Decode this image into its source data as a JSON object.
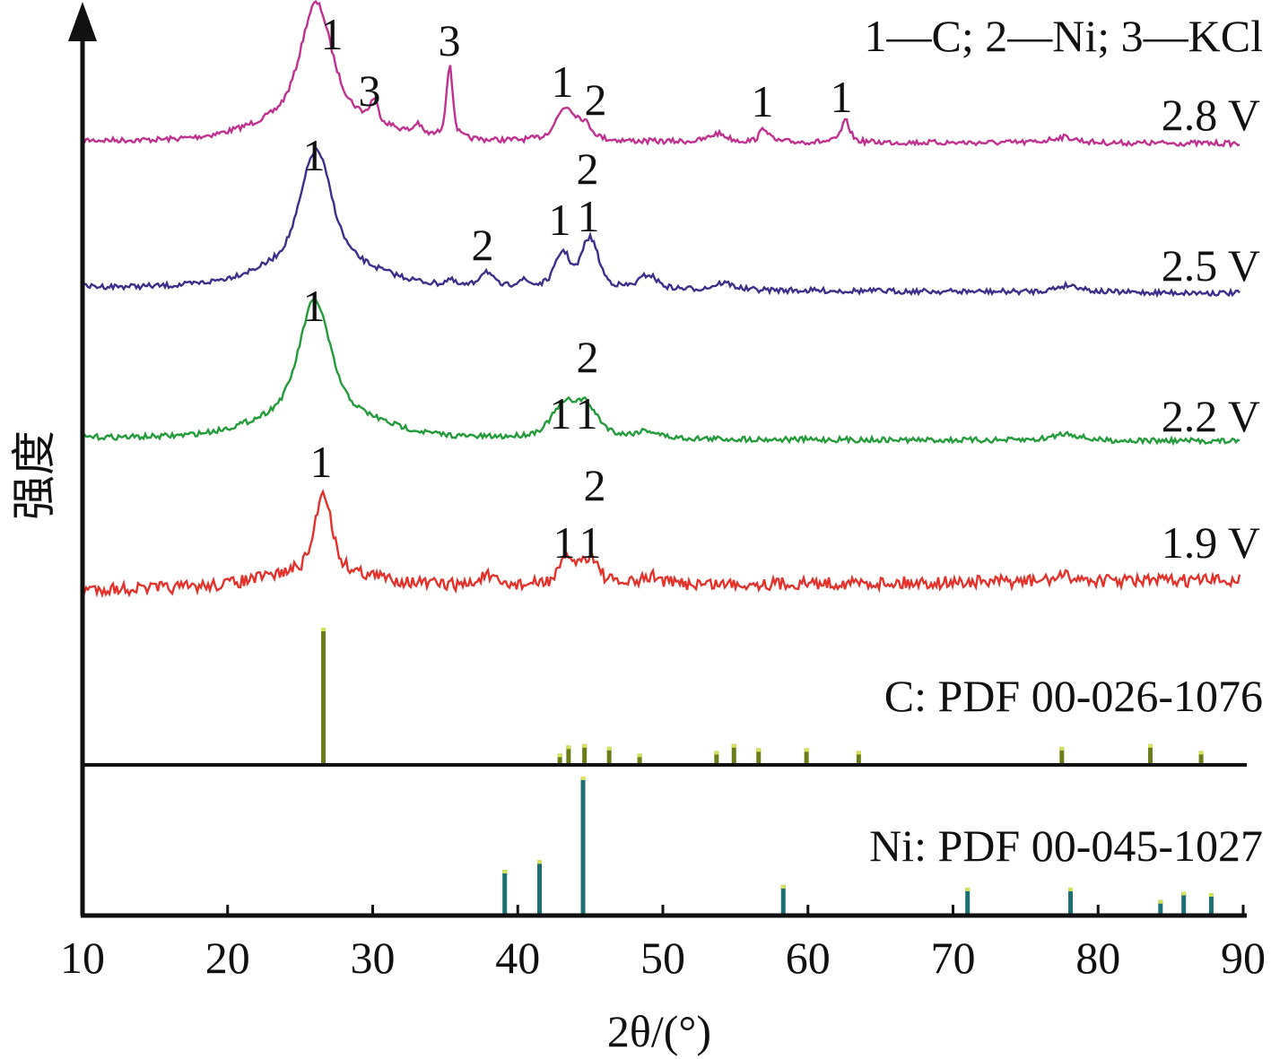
{
  "chart_data": {
    "type": "line",
    "xlabel": "2θ/(°)",
    "ylabel": "强度",
    "xlim": [
      10,
      90
    ],
    "x_ticks": [
      10,
      20,
      30,
      40,
      50,
      60,
      70,
      80,
      90
    ],
    "legend": "1—C; 2—Ni; 3—KCl",
    "series": [
      {
        "name": "2.8 V",
        "color": "#c0308f",
        "baseline": 0.155,
        "peaks": [
          {
            "x": 26.1,
            "height": 0.97,
            "width": 1.4,
            "label": "1"
          },
          {
            "x": 30.1,
            "height": 0.18,
            "width": 0.35,
            "label": "3"
          },
          {
            "x": 33.1,
            "height": 0.09,
            "width": 0.3
          },
          {
            "x": 35.3,
            "height": 0.62,
            "width": 0.3,
            "label": "3"
          },
          {
            "x": 43.3,
            "height": 0.28,
            "width": 0.9,
            "label": "1"
          },
          {
            "x": 44.6,
            "height": 0.12,
            "width": 0.7,
            "label": "2"
          },
          {
            "x": 53.8,
            "height": 0.07,
            "width": 0.8
          },
          {
            "x": 57.0,
            "height": 0.12,
            "width": 0.4,
            "label": "1"
          },
          {
            "x": 62.6,
            "height": 0.18,
            "width": 0.4,
            "label": "1"
          },
          {
            "x": 77.6,
            "height": 0.05,
            "width": 1.2
          }
        ]
      },
      {
        "name": "2.5 V",
        "color": "#3a2f8a",
        "baseline": 0.155,
        "peaks": [
          {
            "x": 26.1,
            "height": 0.97,
            "width": 1.4,
            "label": "1"
          },
          {
            "x": 35.3,
            "height": 0.05,
            "width": 0.4
          },
          {
            "x": 37.8,
            "height": 0.14,
            "width": 0.6,
            "label": "2"
          },
          {
            "x": 40.3,
            "height": 0.06,
            "width": 0.6
          },
          {
            "x": 43.1,
            "height": 0.3,
            "width": 0.7,
            "label": "1"
          },
          {
            "x": 45.1,
            "height": 0.36,
            "width": 0.7,
            "label": "1"
          },
          {
            "x": 44.6,
            "height": 0.12,
            "width": 0.5,
            "label": "2"
          },
          {
            "x": 49.0,
            "height": 0.12,
            "width": 0.8
          },
          {
            "x": 54.2,
            "height": 0.06,
            "width": 0.9
          },
          {
            "x": 78.0,
            "height": 0.06,
            "width": 1.2
          }
        ]
      },
      {
        "name": "2.2 V",
        "color": "#239b3a",
        "baseline": 0.155,
        "peaks": [
          {
            "x": 26.0,
            "height": 0.97,
            "width": 1.4,
            "label": "1"
          },
          {
            "x": 43.2,
            "height": 0.26,
            "width": 1.2,
            "label": "1"
          },
          {
            "x": 44.8,
            "height": 0.2,
            "width": 1.2,
            "label": "1"
          },
          {
            "x": 44.6,
            "height": 0.05,
            "width": 0.6,
            "label": "2"
          },
          {
            "x": 48.9,
            "height": 0.06,
            "width": 1.0
          },
          {
            "x": 77.8,
            "height": 0.06,
            "width": 1.2
          }
        ]
      },
      {
        "name": "1.9 V",
        "color": "#e2322b",
        "baseline": 0.155,
        "peaks": [
          {
            "x": 26.6,
            "height": 0.82,
            "width": 0.75,
            "label": "1"
          },
          {
            "x": 37.8,
            "height": 0.1,
            "width": 0.6
          },
          {
            "x": 43.5,
            "height": 0.26,
            "width": 0.8,
            "label": "1"
          },
          {
            "x": 45.1,
            "height": 0.24,
            "width": 0.7,
            "label": "1"
          },
          {
            "x": 44.6,
            "height": 0.05,
            "width": 0.5,
            "label": "2"
          },
          {
            "x": 49.3,
            "height": 0.08,
            "width": 0.8
          },
          {
            "x": 77.8,
            "height": 0.05,
            "width": 1.2
          }
        ]
      }
    ],
    "reference_patterns": [
      {
        "name": "C: PDF 00-026-1076",
        "color": "#6b7d1a",
        "lines": [
          {
            "x": 26.6,
            "intensity": 1.0
          },
          {
            "x": 42.9,
            "intensity": 0.07
          },
          {
            "x": 43.5,
            "intensity": 0.13
          },
          {
            "x": 44.6,
            "intensity": 0.14
          },
          {
            "x": 46.3,
            "intensity": 0.12
          },
          {
            "x": 48.4,
            "intensity": 0.07
          },
          {
            "x": 53.7,
            "intensity": 0.09
          },
          {
            "x": 54.9,
            "intensity": 0.14
          },
          {
            "x": 56.6,
            "intensity": 0.11
          },
          {
            "x": 59.9,
            "intensity": 0.11
          },
          {
            "x": 63.5,
            "intensity": 0.09
          },
          {
            "x": 77.5,
            "intensity": 0.12
          },
          {
            "x": 83.6,
            "intensity": 0.14
          },
          {
            "x": 87.1,
            "intensity": 0.09
          }
        ]
      },
      {
        "name": "Ni: PDF 00-045-1027",
        "color": "#1c6f73",
        "lines": [
          {
            "x": 39.1,
            "intensity": 0.32
          },
          {
            "x": 41.5,
            "intensity": 0.39
          },
          {
            "x": 44.5,
            "intensity": 1.0
          },
          {
            "x": 58.3,
            "intensity": 0.21
          },
          {
            "x": 71.0,
            "intensity": 0.19
          },
          {
            "x": 78.1,
            "intensity": 0.19
          },
          {
            "x": 84.3,
            "intensity": 0.1
          },
          {
            "x": 85.9,
            "intensity": 0.16
          },
          {
            "x": 87.8,
            "intensity": 0.15
          }
        ]
      }
    ]
  }
}
